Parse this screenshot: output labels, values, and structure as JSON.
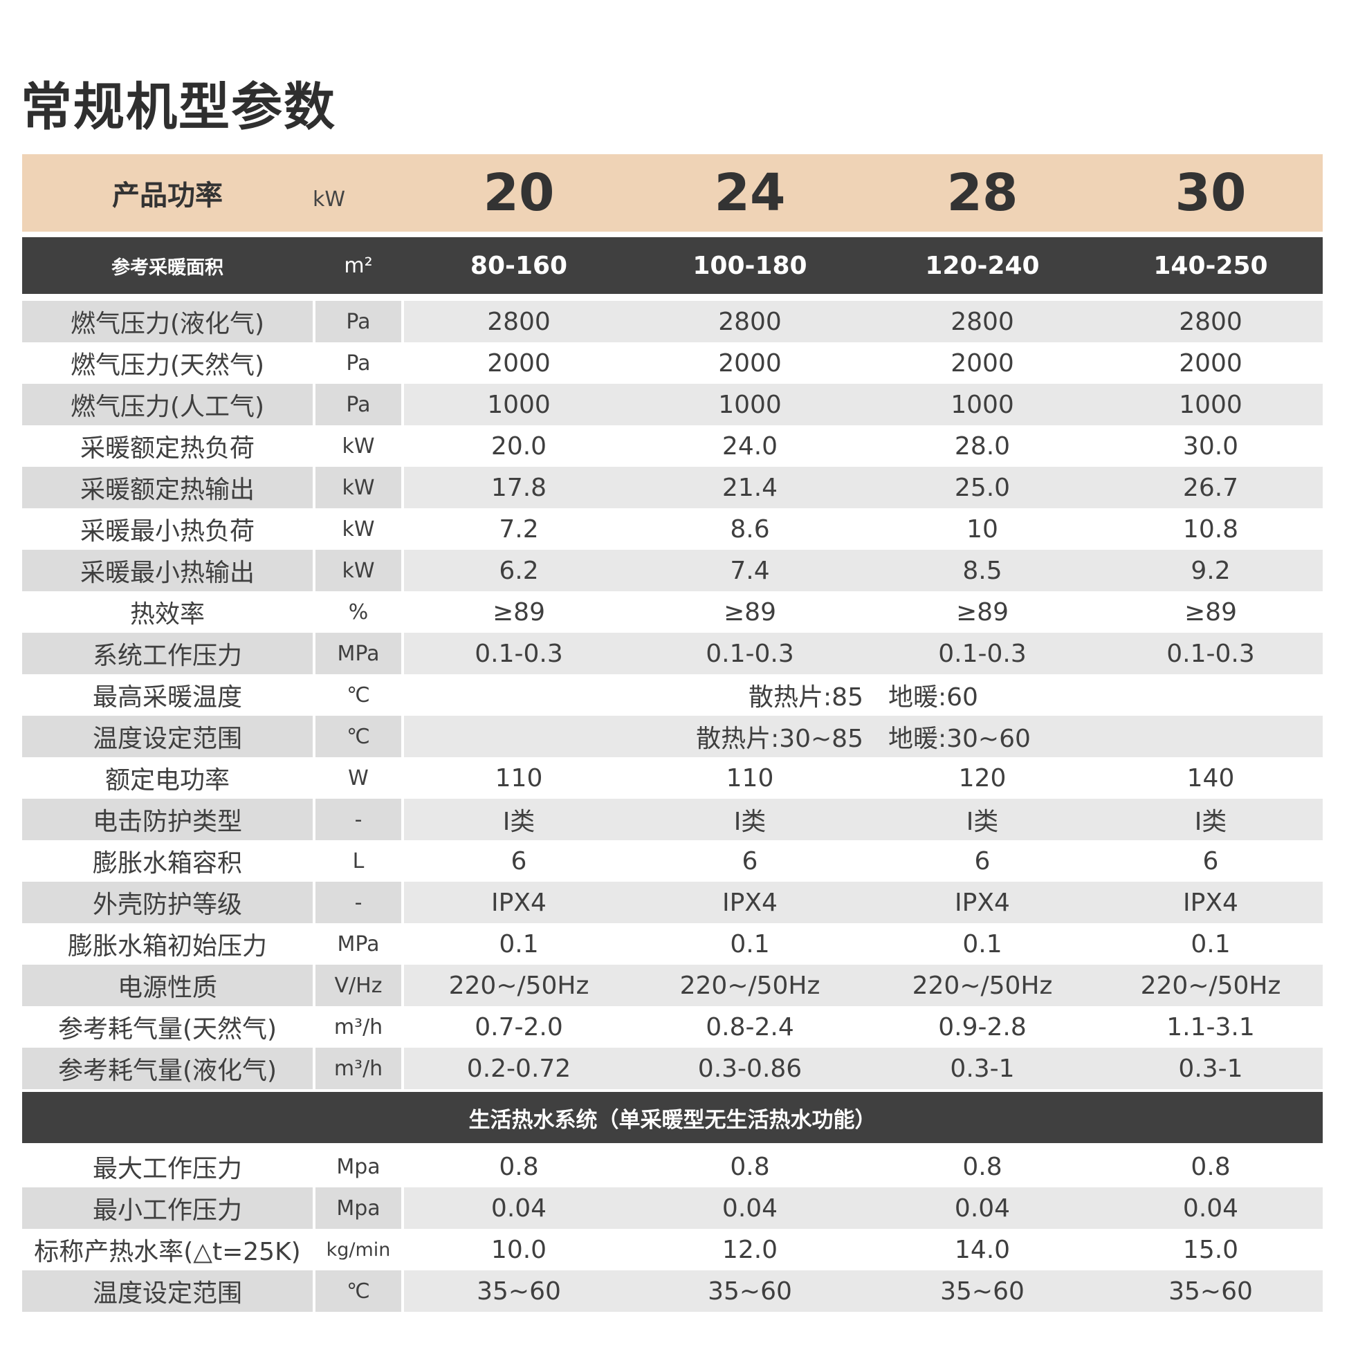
{
  "title": "常规机型参数",
  "power_row": {
    "label": "产品功率",
    "unit": "kW",
    "values": [
      "20",
      "24",
      "28",
      "30"
    ]
  },
  "area_row": {
    "label": "参考采暖面积",
    "unit": "m²",
    "values": [
      "80-160",
      "100-180",
      "120-240",
      "140-250"
    ]
  },
  "heating_rows": [
    {
      "label": "燃气压力(液化气)",
      "unit": "Pa",
      "values": [
        "2800",
        "2800",
        "2800",
        "2800"
      ]
    },
    {
      "label": "燃气压力(天然气)",
      "unit": "Pa",
      "values": [
        "2000",
        "2000",
        "2000",
        "2000"
      ]
    },
    {
      "label": "燃气压力(人工气)",
      "unit": "Pa",
      "values": [
        "1000",
        "1000",
        "1000",
        "1000"
      ]
    },
    {
      "label": "采暖额定热负荷",
      "unit": "kW",
      "values": [
        "20.0",
        "24.0",
        "28.0",
        "30.0"
      ]
    },
    {
      "label": "采暖额定热输出",
      "unit": "kW",
      "values": [
        "17.8",
        "21.4",
        "25.0",
        "26.7"
      ]
    },
    {
      "label": "采暖最小热负荷",
      "unit": "kW",
      "values": [
        "7.2",
        "8.6",
        "10",
        "10.8"
      ]
    },
    {
      "label": "采暖最小热输出",
      "unit": "kW",
      "values": [
        "6.2",
        "7.4",
        "8.5",
        "9.2"
      ]
    },
    {
      "label": "热效率",
      "unit": "%",
      "values": [
        "≥89",
        "≥89",
        "≥89",
        "≥89"
      ]
    },
    {
      "label": "系统工作压力",
      "unit": "MPa",
      "values": [
        "0.1-0.3",
        "0.1-0.3",
        "0.1-0.3",
        "0.1-0.3"
      ]
    },
    {
      "label": "最高采暖温度",
      "unit": "℃",
      "span": "散热片:85　地暖:60"
    },
    {
      "label": "温度设定范围",
      "unit": "℃",
      "span": "散热片:30~85　地暖:30~60"
    },
    {
      "label": "额定电功率",
      "unit": "W",
      "values": [
        "110",
        "110",
        "120",
        "140"
      ]
    },
    {
      "label": "电击防护类型",
      "unit": "-",
      "values": [
        "I类",
        "I类",
        "I类",
        "I类"
      ]
    },
    {
      "label": "膨胀水箱容积",
      "unit": "L",
      "values": [
        "6",
        "6",
        "6",
        "6"
      ]
    },
    {
      "label": "外壳防护等级",
      "unit": "-",
      "values": [
        "IPX4",
        "IPX4",
        "IPX4",
        "IPX4"
      ]
    },
    {
      "label": "膨胀水箱初始压力",
      "unit": "MPa",
      "values": [
        "0.1",
        "0.1",
        "0.1",
        "0.1"
      ]
    },
    {
      "label": "电源性质",
      "unit": "V/Hz",
      "values": [
        "220~/50Hz",
        "220~/50Hz",
        "220~/50Hz",
        "220~/50Hz"
      ]
    },
    {
      "label": "参考耗气量(天然气)",
      "unit": "m³/h",
      "values": [
        "0.7-2.0",
        "0.8-2.4",
        "0.9-2.8",
        "1.1-3.1"
      ]
    },
    {
      "label": "参考耗气量(液化气)",
      "unit": "m³/h",
      "values": [
        "0.2-0.72",
        "0.3-0.86",
        "0.3-1",
        "0.3-1"
      ]
    }
  ],
  "section_title": "生活热水系统（单采暖型无生活热水功能）",
  "hot_water_rows": [
    {
      "label": "最大工作压力",
      "unit": "Mpa",
      "values": [
        "0.8",
        "0.8",
        "0.8",
        "0.8"
      ]
    },
    {
      "label": "最小工作压力",
      "unit": "Mpa",
      "values": [
        "0.04",
        "0.04",
        "0.04",
        "0.04"
      ]
    },
    {
      "label": "标称产热水率(△t=25K)",
      "unit": "kg/min",
      "values": [
        "10.0",
        "12.0",
        "14.0",
        "15.0"
      ]
    },
    {
      "label": "温度设定范围",
      "unit": "℃",
      "values": [
        "35~60",
        "35~60",
        "35~60",
        "35~60"
      ]
    }
  ]
}
